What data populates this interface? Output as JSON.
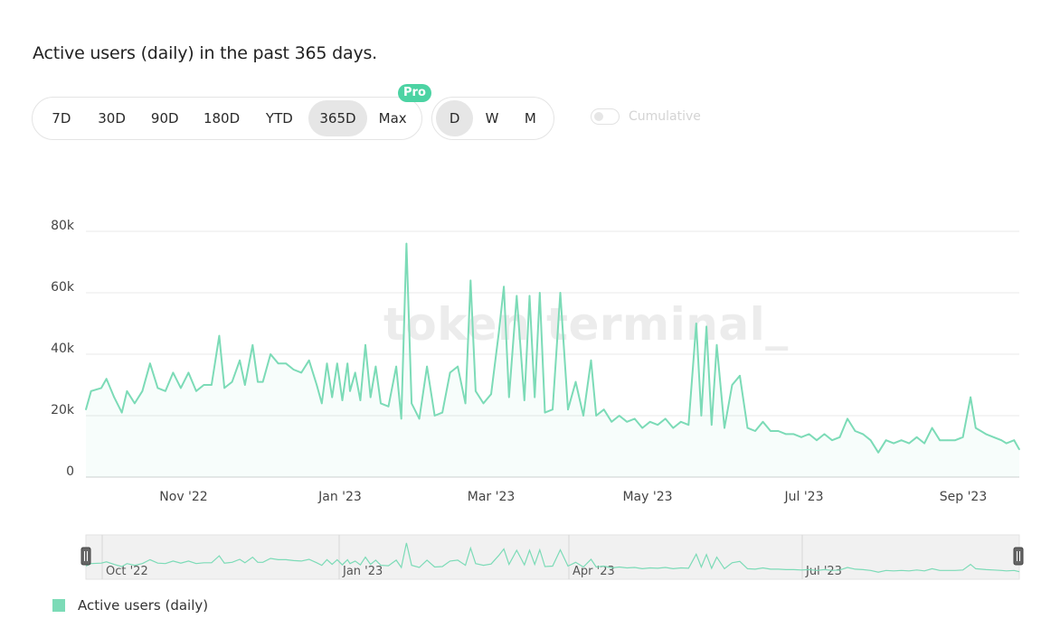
{
  "title": "Active users (daily) in the past 365 days.",
  "range_buttons": [
    {
      "label": "7D",
      "active": false
    },
    {
      "label": "30D",
      "active": false
    },
    {
      "label": "90D",
      "active": false
    },
    {
      "label": "180D",
      "active": false
    },
    {
      "label": "YTD",
      "active": false
    },
    {
      "label": "365D",
      "active": true
    },
    {
      "label": "Max",
      "active": false
    }
  ],
  "pro_badge": "Pro",
  "interval_buttons": [
    {
      "label": "D",
      "active": true
    },
    {
      "label": "W",
      "active": false
    },
    {
      "label": "M",
      "active": false
    }
  ],
  "cumulative_label": "Cumulative",
  "cumulative_on": false,
  "watermark": "token terminal_",
  "colors": {
    "series": "#7cdbb7",
    "accent": "#4cd3a3",
    "grid": "#e8e8e8"
  },
  "chart_data": {
    "type": "line",
    "title": "Active users (daily) in the past 365 days.",
    "x_start": "2022-09-20",
    "x_end": "2023-09-19",
    "x_ticks": [
      "Nov '22",
      "Jan '23",
      "Mar '23",
      "May '23",
      "Jul '23",
      "Sep '23"
    ],
    "y_ticks": [
      "0",
      "20k",
      "40k",
      "60k",
      "80k"
    ],
    "ylim": [
      0,
      80000
    ],
    "grid": true,
    "legend": "bottom-left",
    "series": [
      {
        "name": "Active users (daily)",
        "points": [
          [
            "2022-09-20",
            22000
          ],
          [
            "2022-09-22",
            28000
          ],
          [
            "2022-09-26",
            29000
          ],
          [
            "2022-09-28",
            32000
          ],
          [
            "2022-10-01",
            26000
          ],
          [
            "2022-10-04",
            21000
          ],
          [
            "2022-10-06",
            28000
          ],
          [
            "2022-10-09",
            24000
          ],
          [
            "2022-10-12",
            28000
          ],
          [
            "2022-10-15",
            37000
          ],
          [
            "2022-10-18",
            29000
          ],
          [
            "2022-10-21",
            28000
          ],
          [
            "2022-10-24",
            34000
          ],
          [
            "2022-10-27",
            29000
          ],
          [
            "2022-10-30",
            34000
          ],
          [
            "2022-11-02",
            28000
          ],
          [
            "2022-11-05",
            30000
          ],
          [
            "2022-11-08",
            30000
          ],
          [
            "2022-11-11",
            46000
          ],
          [
            "2022-11-13",
            29000
          ],
          [
            "2022-11-16",
            31000
          ],
          [
            "2022-11-19",
            38000
          ],
          [
            "2022-11-21",
            30000
          ],
          [
            "2022-11-24",
            43000
          ],
          [
            "2022-11-26",
            31000
          ],
          [
            "2022-11-28",
            31000
          ],
          [
            "2022-12-01",
            40000
          ],
          [
            "2022-12-04",
            37000
          ],
          [
            "2022-12-07",
            37000
          ],
          [
            "2022-12-10",
            35000
          ],
          [
            "2022-12-13",
            34000
          ],
          [
            "2022-12-16",
            38000
          ],
          [
            "2022-12-19",
            30000
          ],
          [
            "2022-12-21",
            24000
          ],
          [
            "2022-12-23",
            37000
          ],
          [
            "2022-12-25",
            26000
          ],
          [
            "2022-12-27",
            37000
          ],
          [
            "2022-12-29",
            25000
          ],
          [
            "2022-12-31",
            37000
          ],
          [
            "2023-01-01",
            28000
          ],
          [
            "2023-01-03",
            34000
          ],
          [
            "2023-01-05",
            25000
          ],
          [
            "2023-01-07",
            43000
          ],
          [
            "2023-01-09",
            26000
          ],
          [
            "2023-01-11",
            36000
          ],
          [
            "2023-01-13",
            24000
          ],
          [
            "2023-01-16",
            23000
          ],
          [
            "2023-01-19",
            36000
          ],
          [
            "2023-01-21",
            19000
          ],
          [
            "2023-01-23",
            76000
          ],
          [
            "2023-01-25",
            24000
          ],
          [
            "2023-01-28",
            19000
          ],
          [
            "2023-01-31",
            36000
          ],
          [
            "2023-02-03",
            20000
          ],
          [
            "2023-02-06",
            21000
          ],
          [
            "2023-02-09",
            34000
          ],
          [
            "2023-02-12",
            36000
          ],
          [
            "2023-02-15",
            24000
          ],
          [
            "2023-02-17",
            64000
          ],
          [
            "2023-02-19",
            28000
          ],
          [
            "2023-02-22",
            24000
          ],
          [
            "2023-02-25",
            27000
          ],
          [
            "2023-02-28",
            47000
          ],
          [
            "2023-03-02",
            62000
          ],
          [
            "2023-03-04",
            26000
          ],
          [
            "2023-03-07",
            59000
          ],
          [
            "2023-03-10",
            25000
          ],
          [
            "2023-03-12",
            59000
          ],
          [
            "2023-03-14",
            26000
          ],
          [
            "2023-03-16",
            60000
          ],
          [
            "2023-03-18",
            21000
          ],
          [
            "2023-03-21",
            22000
          ],
          [
            "2023-03-24",
            60000
          ],
          [
            "2023-03-27",
            22000
          ],
          [
            "2023-03-30",
            31000
          ],
          [
            "2023-04-02",
            20000
          ],
          [
            "2023-04-05",
            38000
          ],
          [
            "2023-04-07",
            20000
          ],
          [
            "2023-04-10",
            22000
          ],
          [
            "2023-04-13",
            18000
          ],
          [
            "2023-04-16",
            20000
          ],
          [
            "2023-04-19",
            18000
          ],
          [
            "2023-04-22",
            19000
          ],
          [
            "2023-04-25",
            16000
          ],
          [
            "2023-04-28",
            18000
          ],
          [
            "2023-05-01",
            17000
          ],
          [
            "2023-05-04",
            19000
          ],
          [
            "2023-05-07",
            16000
          ],
          [
            "2023-05-10",
            18000
          ],
          [
            "2023-05-13",
            17000
          ],
          [
            "2023-05-16",
            50000
          ],
          [
            "2023-05-18",
            20000
          ],
          [
            "2023-05-20",
            49000
          ],
          [
            "2023-05-22",
            17000
          ],
          [
            "2023-05-24",
            43000
          ],
          [
            "2023-05-27",
            16000
          ],
          [
            "2023-05-30",
            30000
          ],
          [
            "2023-06-02",
            33000
          ],
          [
            "2023-06-05",
            16000
          ],
          [
            "2023-06-08",
            15000
          ],
          [
            "2023-06-11",
            18000
          ],
          [
            "2023-06-14",
            15000
          ],
          [
            "2023-06-17",
            15000
          ],
          [
            "2023-06-20",
            14000
          ],
          [
            "2023-06-23",
            14000
          ],
          [
            "2023-06-26",
            13000
          ],
          [
            "2023-06-29",
            14000
          ],
          [
            "2023-07-02",
            12000
          ],
          [
            "2023-07-05",
            14000
          ],
          [
            "2023-07-08",
            12000
          ],
          [
            "2023-07-11",
            13000
          ],
          [
            "2023-07-14",
            19000
          ],
          [
            "2023-07-17",
            15000
          ],
          [
            "2023-07-20",
            14000
          ],
          [
            "2023-07-23",
            12000
          ],
          [
            "2023-07-26",
            8000
          ],
          [
            "2023-07-29",
            12000
          ],
          [
            "2023-08-01",
            11000
          ],
          [
            "2023-08-04",
            12000
          ],
          [
            "2023-08-07",
            11000
          ],
          [
            "2023-08-10",
            13000
          ],
          [
            "2023-08-13",
            11000
          ],
          [
            "2023-08-16",
            16000
          ],
          [
            "2023-08-19",
            12000
          ],
          [
            "2023-08-22",
            12000
          ],
          [
            "2023-08-25",
            12000
          ],
          [
            "2023-08-28",
            13000
          ],
          [
            "2023-08-31",
            26000
          ],
          [
            "2023-09-02",
            16000
          ],
          [
            "2023-09-04",
            15000
          ],
          [
            "2023-09-06",
            14000
          ],
          [
            "2023-09-09",
            13000
          ],
          [
            "2023-09-12",
            12000
          ],
          [
            "2023-09-14",
            11000
          ],
          [
            "2023-09-17",
            12000
          ],
          [
            "2023-09-19",
            9000
          ]
        ]
      }
    ],
    "navigator": {
      "x_ticks": [
        "Oct '22",
        "Jan '23",
        "Apr '23",
        "Jul '23"
      ]
    }
  }
}
